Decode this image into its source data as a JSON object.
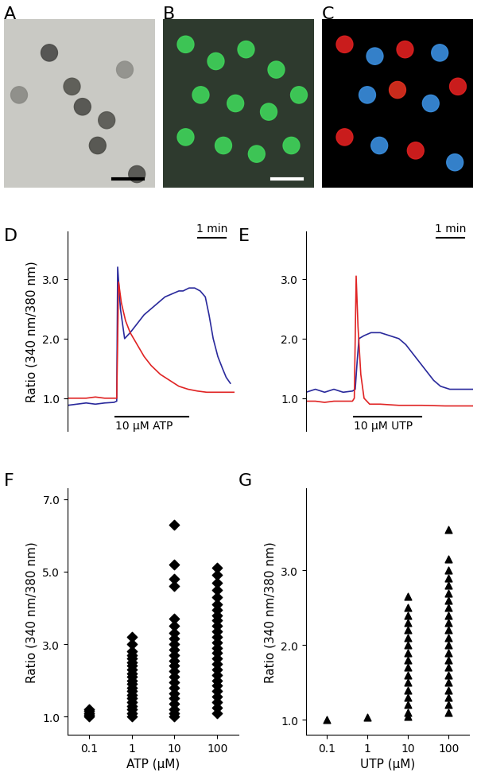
{
  "chart_data": [
    {
      "type": "image",
      "label": "A"
    },
    {
      "type": "image",
      "label": "B"
    },
    {
      "type": "image",
      "label": "C"
    },
    {
      "type": "line",
      "label": "D",
      "y_label": "Ratio (340 nm/380 nm)",
      "tick_labels": "y",
      "xlim": [
        0,
        360
      ],
      "ylim": [
        0.45,
        3.8
      ],
      "yticks": [
        {
          "value": 1,
          "label": "1.0"
        },
        {
          "value": 2,
          "label": "2.0"
        },
        {
          "value": 3,
          "label": "3.0"
        }
      ],
      "stimulus": {
        "label": "10 µM ATP",
        "start": 103,
        "end": 261
      },
      "scale_bar": {
        "label": "1 min",
        "length": 60
      },
      "series": [
        {
          "color": "#2a2a9c",
          "x": [
            0,
            20,
            40,
            60,
            80,
            100,
            106,
            108,
            114,
            123,
            135,
            150,
            165,
            180,
            195,
            210,
            225,
            240,
            249,
            262,
            274,
            286,
            297,
            305,
            314,
            324,
            334,
            342,
            351
          ],
          "values": [
            0.88,
            0.9,
            0.92,
            0.9,
            0.92,
            0.93,
            0.95,
            3.2,
            2.5,
            2.0,
            2.1,
            2.25,
            2.4,
            2.5,
            2.6,
            2.7,
            2.75,
            2.8,
            2.8,
            2.85,
            2.85,
            2.8,
            2.7,
            2.4,
            2.0,
            1.7,
            1.5,
            1.35,
            1.25
          ]
        },
        {
          "color": "#e02424",
          "x": [
            0,
            20,
            40,
            60,
            80,
            100,
            106,
            110,
            116,
            125,
            135,
            150,
            165,
            180,
            200,
            220,
            240,
            260,
            280,
            300,
            320,
            340,
            360
          ],
          "values": [
            1.0,
            1.0,
            1.0,
            1.02,
            1.0,
            1.0,
            1.0,
            2.95,
            2.6,
            2.3,
            2.1,
            1.9,
            1.7,
            1.55,
            1.4,
            1.3,
            1.2,
            1.15,
            1.12,
            1.1,
            1.1,
            1.1,
            1.1
          ]
        }
      ]
    },
    {
      "type": "line",
      "label": "E",
      "tick_labels": "y",
      "xlim": [
        0,
        360
      ],
      "ylim": [
        0.45,
        3.8
      ],
      "yticks": [
        {
          "value": 1,
          "label": "1.0"
        },
        {
          "value": 2,
          "label": "2.0"
        },
        {
          "value": 3,
          "label": "3.0"
        }
      ],
      "stimulus": {
        "label": "10 µM UTP",
        "start": 103,
        "end": 249
      },
      "scale_bar": {
        "label": "1 min",
        "length": 60
      },
      "series": [
        {
          "color": "#2a2a9c",
          "x": [
            0,
            20,
            40,
            60,
            80,
            100,
            106,
            110,
            114,
            125,
            140,
            160,
            180,
            200,
            215,
            230,
            245,
            260,
            275,
            290,
            310,
            330,
            360
          ],
          "values": [
            1.1,
            1.15,
            1.1,
            1.15,
            1.1,
            1.12,
            1.15,
            1.6,
            2.0,
            2.05,
            2.1,
            2.1,
            2.05,
            2.0,
            1.9,
            1.75,
            1.6,
            1.45,
            1.3,
            1.2,
            1.15,
            1.15,
            1.15
          ]
        },
        {
          "color": "#e02424",
          "x": [
            0,
            20,
            40,
            60,
            80,
            100,
            104,
            108,
            112,
            118,
            125,
            137,
            160,
            200,
            250,
            300,
            360
          ],
          "values": [
            0.95,
            0.95,
            0.93,
            0.95,
            0.95,
            0.95,
            1.0,
            3.05,
            2.2,
            1.4,
            1.0,
            0.9,
            0.9,
            0.88,
            0.88,
            0.87,
            0.87
          ]
        }
      ]
    },
    {
      "type": "scatter",
      "label": "F",
      "x_label": "ATP (µM)",
      "y_label": "Ratio (340 nm/380 nm)",
      "marker": "diamond",
      "color": "#000000",
      "categories": [
        "0.1",
        "1",
        "10",
        "100"
      ],
      "ylim": [
        0.5,
        7.3
      ],
      "yticks": [
        {
          "value": 1,
          "label": "1.0"
        },
        {
          "value": 3,
          "label": "3.0"
        },
        {
          "value": 5,
          "label": "5.0"
        },
        {
          "value": 7,
          "label": "7.0"
        }
      ],
      "values": [
        [
          1.0,
          1.05,
          1.1,
          1.15,
          1.2
        ],
        [
          1.0,
          1.1,
          1.2,
          1.3,
          1.4,
          1.5,
          1.6,
          1.7,
          1.8,
          1.9,
          2.0,
          2.1,
          2.2,
          2.3,
          2.4,
          2.5,
          2.6,
          2.7,
          2.8,
          3.0,
          3.2
        ],
        [
          1.0,
          1.1,
          1.2,
          1.35,
          1.5,
          1.65,
          1.8,
          1.95,
          2.1,
          2.25,
          2.4,
          2.55,
          2.7,
          2.85,
          3.0,
          3.15,
          3.3,
          3.5,
          3.7,
          4.6,
          4.8,
          5.2,
          6.3
        ],
        [
          1.1,
          1.25,
          1.4,
          1.55,
          1.7,
          1.85,
          2.0,
          2.15,
          2.3,
          2.45,
          2.6,
          2.75,
          2.9,
          3.05,
          3.2,
          3.35,
          3.5,
          3.65,
          3.8,
          3.95,
          4.1,
          4.3,
          4.5,
          4.7,
          4.9,
          5.1
        ]
      ]
    },
    {
      "type": "scatter",
      "label": "G",
      "x_label": "UTP (µM)",
      "y_label": "Ratio (340 nm/380 nm)",
      "marker": "triangle",
      "color": "#000000",
      "categories": [
        "0.1",
        "1",
        "10",
        "100"
      ],
      "ylim": [
        0.8,
        4.1
      ],
      "yticks": [
        {
          "value": 1,
          "label": "1.0"
        },
        {
          "value": 2,
          "label": "2.0"
        },
        {
          "value": 3,
          "label": "3.0"
        }
      ],
      "values": [
        [
          1.0
        ],
        [
          1.03
        ],
        [
          1.05,
          1.1,
          1.2,
          1.3,
          1.4,
          1.5,
          1.6,
          1.7,
          1.8,
          1.9,
          2.0,
          2.1,
          2.2,
          2.3,
          2.4,
          2.5,
          2.65
        ],
        [
          1.1,
          1.2,
          1.3,
          1.4,
          1.5,
          1.6,
          1.7,
          1.8,
          1.9,
          2.0,
          2.1,
          2.2,
          2.3,
          2.4,
          2.5,
          2.6,
          2.7,
          2.8,
          2.9,
          3.0,
          3.15,
          3.55
        ]
      ]
    }
  ]
}
